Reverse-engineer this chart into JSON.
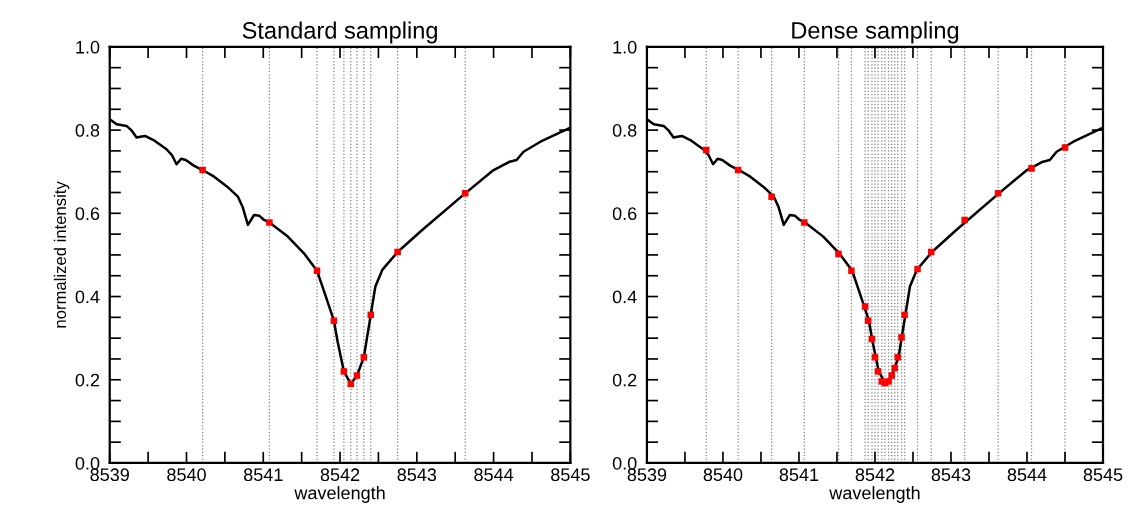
{
  "chart_data": [
    {
      "type": "line",
      "title": "Standard sampling",
      "xlabel": "wavelength",
      "ylabel": "normalized intensity",
      "xlim": [
        8539,
        8545
      ],
      "ylim": [
        0.0,
        1.0
      ],
      "xticks": [
        8539,
        {
          "value": 8539.5,
          "label": null
        },
        8540,
        {
          "value": 8540.5,
          "label": null
        },
        8541,
        {
          "value": 8541.5,
          "label": null
        },
        8542,
        {
          "value": 8542.5,
          "label": null
        },
        8543,
        {
          "value": 8543.5,
          "label": null
        },
        8544,
        {
          "value": 8544.5,
          "label": null
        },
        8545
      ],
      "yticks": [
        {
          "value": 0.0,
          "label": "0.0"
        },
        {
          "value": 0.05,
          "label": null
        },
        {
          "value": 0.1,
          "label": null
        },
        {
          "value": 0.15,
          "label": null
        },
        {
          "value": 0.2,
          "label": "0.2"
        },
        {
          "value": 0.25,
          "label": null
        },
        {
          "value": 0.3,
          "label": null
        },
        {
          "value": 0.35,
          "label": null
        },
        {
          "value": 0.4,
          "label": "0.4"
        },
        {
          "value": 0.45,
          "label": null
        },
        {
          "value": 0.5,
          "label": null
        },
        {
          "value": 0.55,
          "label": null
        },
        {
          "value": 0.6,
          "label": "0.6"
        },
        {
          "value": 0.65,
          "label": null
        },
        {
          "value": 0.7,
          "label": null
        },
        {
          "value": 0.75,
          "label": null
        },
        {
          "value": 0.8,
          "label": "0.8"
        },
        {
          "value": 0.85,
          "label": null
        },
        {
          "value": 0.9,
          "label": null
        },
        {
          "value": 0.95,
          "label": null
        },
        {
          "value": 1.0,
          "label": "1.0"
        }
      ],
      "grid": false,
      "series": [
        {
          "color": "#000000",
          "marker": "none",
          "line_style": "solid",
          "x": [
            8539.0,
            8539.09,
            8539.22,
            8539.28,
            8539.35,
            8539.4,
            8539.46,
            8539.57,
            8539.74,
            8539.81,
            8539.87,
            8539.93,
            8539.99,
            8540.1,
            8540.21,
            8540.36,
            8540.53,
            8540.67,
            8540.73,
            8540.8,
            8540.84,
            8540.88,
            8540.95,
            8541.01,
            8541.08,
            8541.32,
            8541.53,
            8541.7,
            8541.8,
            8541.92,
            8541.97,
            8542.05,
            8542.14,
            8542.22,
            8542.31,
            8542.4,
            8542.46,
            8542.55,
            8542.75,
            8543.07,
            8543.63,
            8544.0,
            8544.21,
            8544.3,
            8544.39,
            8544.61,
            8545.0
          ],
          "values": [
            0.826,
            0.814,
            0.81,
            0.8,
            0.782,
            0.784,
            0.786,
            0.776,
            0.754,
            0.74,
            0.718,
            0.731,
            0.728,
            0.714,
            0.704,
            0.688,
            0.664,
            0.64,
            0.616,
            0.572,
            0.584,
            0.596,
            0.594,
            0.584,
            0.578,
            0.544,
            0.504,
            0.462,
            0.408,
            0.342,
            0.29,
            0.22,
            0.19,
            0.21,
            0.254,
            0.356,
            0.424,
            0.464,
            0.507,
            0.56,
            0.648,
            0.704,
            0.724,
            0.728,
            0.748,
            0.772,
            0.806
          ]
        },
        {
          "type": "scatter",
          "color": "#ff0000",
          "marker": "square",
          "x": [
            8540.21,
            8541.08,
            8541.7,
            8541.92,
            8542.05,
            8542.14,
            8542.22,
            8542.31,
            8542.4,
            8542.75,
            8543.63
          ],
          "values": [
            0.704,
            0.578,
            0.462,
            0.342,
            0.22,
            0.19,
            0.21,
            0.254,
            0.356,
            0.507,
            0.648
          ]
        }
      ],
      "ref_lines": [
        {
          "axis": "x",
          "value": 8540.21,
          "color": "#808080",
          "line_style": "dotted"
        },
        {
          "axis": "x",
          "value": 8541.08,
          "color": "#808080",
          "line_style": "dotted"
        },
        {
          "axis": "x",
          "value": 8541.7,
          "color": "#808080",
          "line_style": "dotted"
        },
        {
          "axis": "x",
          "value": 8541.92,
          "color": "#808080",
          "line_style": "dotted"
        },
        {
          "axis": "x",
          "value": 8542.05,
          "color": "#808080",
          "line_style": "dotted"
        },
        {
          "axis": "x",
          "value": 8542.14,
          "color": "#808080",
          "line_style": "dotted"
        },
        {
          "axis": "x",
          "value": 8542.22,
          "color": "#808080",
          "line_style": "dotted"
        },
        {
          "axis": "x",
          "value": 8542.31,
          "color": "#808080",
          "line_style": "dotted"
        },
        {
          "axis": "x",
          "value": 8542.4,
          "color": "#808080",
          "line_style": "dotted"
        },
        {
          "axis": "x",
          "value": 8542.75,
          "color": "#808080",
          "line_style": "dotted"
        },
        {
          "axis": "x",
          "value": 8543.63,
          "color": "#808080",
          "line_style": "dotted"
        }
      ]
    },
    {
      "type": "line",
      "title": "Dense sampling",
      "xlabel": "wavelength",
      "xlim": [
        8539,
        8545
      ],
      "ylim": [
        0.0,
        1.0
      ],
      "xticks": [
        8539,
        {
          "value": 8539.5,
          "label": null
        },
        8540,
        {
          "value": 8540.5,
          "label": null
        },
        8541,
        {
          "value": 8541.5,
          "label": null
        },
        8542,
        {
          "value": 8542.5,
          "label": null
        },
        8543,
        {
          "value": 8543.5,
          "label": null
        },
        8544,
        {
          "value": 8544.5,
          "label": null
        },
        8545
      ],
      "yticks": [
        {
          "value": 0.0,
          "label": "0.0"
        },
        {
          "value": 0.05,
          "label": null
        },
        {
          "value": 0.1,
          "label": null
        },
        {
          "value": 0.15,
          "label": null
        },
        {
          "value": 0.2,
          "label": "0.2"
        },
        {
          "value": 0.25,
          "label": null
        },
        {
          "value": 0.3,
          "label": null
        },
        {
          "value": 0.35,
          "label": null
        },
        {
          "value": 0.4,
          "label": "0.4"
        },
        {
          "value": 0.45,
          "label": null
        },
        {
          "value": 0.5,
          "label": null
        },
        {
          "value": 0.55,
          "label": null
        },
        {
          "value": 0.6,
          "label": "0.6"
        },
        {
          "value": 0.65,
          "label": null
        },
        {
          "value": 0.7,
          "label": null
        },
        {
          "value": 0.75,
          "label": null
        },
        {
          "value": 0.8,
          "label": "0.8"
        },
        {
          "value": 0.85,
          "label": null
        },
        {
          "value": 0.9,
          "label": null
        },
        {
          "value": 0.95,
          "label": null
        },
        {
          "value": 1.0,
          "label": "1.0"
        }
      ],
      "grid": false,
      "series": [
        {
          "color": "#000000",
          "marker": "none",
          "line_style": "solid",
          "x": [
            8539.0,
            8539.09,
            8539.22,
            8539.28,
            8539.35,
            8539.4,
            8539.46,
            8539.57,
            8539.74,
            8539.81,
            8539.87,
            8539.93,
            8539.99,
            8540.1,
            8540.21,
            8540.36,
            8540.53,
            8540.67,
            8540.73,
            8540.8,
            8540.84,
            8540.88,
            8540.95,
            8541.01,
            8541.08,
            8541.32,
            8541.53,
            8541.7,
            8541.8,
            8541.92,
            8541.97,
            8542.05,
            8542.14,
            8542.22,
            8542.31,
            8542.4,
            8542.46,
            8542.55,
            8542.75,
            8543.07,
            8543.63,
            8544.0,
            8544.21,
            8544.3,
            8544.39,
            8544.61,
            8545.0
          ],
          "values": [
            0.826,
            0.814,
            0.81,
            0.8,
            0.782,
            0.784,
            0.786,
            0.776,
            0.754,
            0.74,
            0.718,
            0.731,
            0.728,
            0.714,
            0.704,
            0.688,
            0.664,
            0.64,
            0.616,
            0.572,
            0.584,
            0.596,
            0.594,
            0.584,
            0.578,
            0.544,
            0.504,
            0.462,
            0.408,
            0.342,
            0.29,
            0.22,
            0.19,
            0.21,
            0.254,
            0.356,
            0.424,
            0.464,
            0.507,
            0.56,
            0.648,
            0.704,
            0.724,
            0.728,
            0.748,
            0.772,
            0.806
          ]
        },
        {
          "type": "scatter",
          "color": "#ff0000",
          "marker": "square",
          "x": [
            8539.78,
            8540.2,
            8540.64,
            8541.07,
            8541.52,
            8541.69,
            8541.87,
            8541.91,
            8541.96,
            8542.0,
            8542.04,
            8542.09,
            8542.13,
            8542.18,
            8542.22,
            8542.26,
            8542.3,
            8542.35,
            8542.39,
            8542.56,
            8542.74,
            8543.18,
            8543.62,
            8544.06,
            8544.5
          ],
          "values": [
            0.752,
            0.704,
            0.64,
            0.578,
            0.502,
            0.462,
            0.376,
            0.342,
            0.298,
            0.254,
            0.22,
            0.196,
            0.192,
            0.196,
            0.21,
            0.228,
            0.254,
            0.302,
            0.356,
            0.466,
            0.507,
            0.584,
            0.648,
            0.708,
            0.758
          ]
        }
      ],
      "ref_lines": [
        {
          "axis": "x",
          "value": 8539.78,
          "color": "#808080",
          "line_style": "dotted"
        },
        {
          "axis": "x",
          "value": 8540.2,
          "color": "#808080",
          "line_style": "dotted"
        },
        {
          "axis": "x",
          "value": 8540.64,
          "color": "#808080",
          "line_style": "dotted"
        },
        {
          "axis": "x",
          "value": 8541.07,
          "color": "#808080",
          "line_style": "dotted"
        },
        {
          "axis": "x",
          "value": 8541.52,
          "color": "#808080",
          "line_style": "dotted"
        },
        {
          "axis": "x",
          "value": 8541.69,
          "color": "#808080",
          "line_style": "dotted"
        },
        {
          "axis": "x",
          "value": 8541.87,
          "color": "#808080",
          "line_style": "dotted"
        },
        {
          "axis": "x",
          "value": 8541.91,
          "color": "#808080",
          "line_style": "dotted"
        },
        {
          "axis": "x",
          "value": 8541.96,
          "color": "#808080",
          "line_style": "dotted"
        },
        {
          "axis": "x",
          "value": 8542.0,
          "color": "#808080",
          "line_style": "dotted"
        },
        {
          "axis": "x",
          "value": 8542.04,
          "color": "#808080",
          "line_style": "dotted"
        },
        {
          "axis": "x",
          "value": 8542.09,
          "color": "#808080",
          "line_style": "dotted"
        },
        {
          "axis": "x",
          "value": 8542.13,
          "color": "#808080",
          "line_style": "dotted"
        },
        {
          "axis": "x",
          "value": 8542.18,
          "color": "#808080",
          "line_style": "dotted"
        },
        {
          "axis": "x",
          "value": 8542.22,
          "color": "#808080",
          "line_style": "dotted"
        },
        {
          "axis": "x",
          "value": 8542.26,
          "color": "#808080",
          "line_style": "dotted"
        },
        {
          "axis": "x",
          "value": 8542.3,
          "color": "#808080",
          "line_style": "dotted"
        },
        {
          "axis": "x",
          "value": 8542.35,
          "color": "#808080",
          "line_style": "dotted"
        },
        {
          "axis": "x",
          "value": 8542.39,
          "color": "#808080",
          "line_style": "dotted"
        },
        {
          "axis": "x",
          "value": 8542.56,
          "color": "#808080",
          "line_style": "dotted"
        },
        {
          "axis": "x",
          "value": 8542.74,
          "color": "#808080",
          "line_style": "dotted"
        },
        {
          "axis": "x",
          "value": 8543.18,
          "color": "#808080",
          "line_style": "dotted"
        },
        {
          "axis": "x",
          "value": 8543.62,
          "color": "#808080",
          "line_style": "dotted"
        },
        {
          "axis": "x",
          "value": 8544.06,
          "color": "#808080",
          "line_style": "dotted"
        },
        {
          "axis": "x",
          "value": 8544.5,
          "color": "#808080",
          "line_style": "dotted"
        }
      ]
    }
  ]
}
